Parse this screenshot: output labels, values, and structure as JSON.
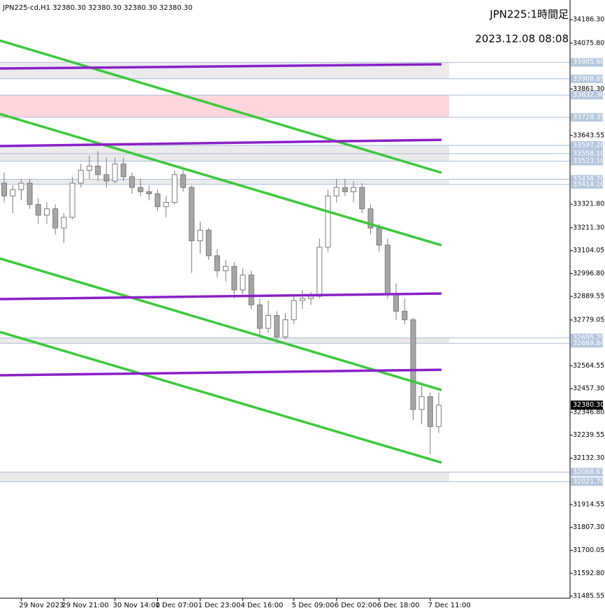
{
  "chart_data": {
    "type": "candlestick",
    "info_text": "JPN225-cd,H1  32380.30 32380.30 32380.30 32380.30",
    "title": "JPN225:1時間足",
    "subtitle": "2023.12.08 08:08",
    "ylim": [
      31475.8,
      34278.0
    ],
    "yticks": [
      {
        "value": 34186.3,
        "label": "34186.30"
      },
      {
        "value": 34075.8,
        "label": "34075.80"
      },
      {
        "value": 33861.3,
        "label": "33861.30"
      },
      {
        "value": 33643.55,
        "label": "33643.55"
      },
      {
        "value": 33321.8,
        "label": "33321.80"
      },
      {
        "value": 33211.3,
        "label": "33211.30"
      },
      {
        "value": 33104.05,
        "label": "33104.05"
      },
      {
        "value": 32996.8,
        "label": "32996.80"
      },
      {
        "value": 32889.55,
        "label": "32889.55"
      },
      {
        "value": 32779.05,
        "label": "32779.05"
      },
      {
        "value": 32564.55,
        "label": "32564.55"
      },
      {
        "value": 32457.3,
        "label": "32457.30"
      },
      {
        "value": 32346.8,
        "label": "32346.80"
      },
      {
        "value": 32239.55,
        "label": "32239.55"
      },
      {
        "value": 32132.3,
        "label": "32132.30"
      },
      {
        "value": 31914.55,
        "label": "31914.55"
      },
      {
        "value": 31807.3,
        "label": "31807.30"
      },
      {
        "value": 31700.05,
        "label": "31700.05"
      },
      {
        "value": 31592.8,
        "label": "31592.80"
      },
      {
        "value": 31485.55,
        "label": "31485.55"
      }
    ],
    "categories": [
      null,
      null,
      "29 Nov 2023",
      null,
      null,
      null,
      null,
      "29 Nov 21:00",
      null,
      null,
      null,
      null,
      null,
      "30 Nov 14:00",
      null,
      null,
      null,
      null,
      "1 Dec 07:00",
      null,
      null,
      null,
      null,
      "1 Dec 23:00",
      null,
      null,
      null,
      null,
      "4 Dec 16:00",
      null,
      null,
      null,
      null,
      null,
      "5 Dec 09:00",
      null,
      null,
      null,
      null,
      "6 Dec 02:00",
      null,
      null,
      null,
      null,
      "6 Dec 18:00",
      null,
      null,
      null,
      null,
      null,
      "7 Dec 11:00",
      null
    ],
    "open": [
      33420,
      33360,
      33390,
      33420,
      33320,
      33270,
      33300,
      33210,
      33260,
      33420,
      33480,
      33500,
      33460,
      33430,
      33510,
      33450,
      33400,
      33380,
      33370,
      33310,
      33330,
      33460,
      33400,
      33150,
      33200,
      33080,
      33010,
      33030,
      32920,
      32990,
      32850,
      32740,
      32800,
      32700,
      32780,
      32870,
      32880,
      32890,
      33120,
      33360,
      33400,
      33380,
      33400,
      33300,
      33210,
      33130,
      32900,
      32820,
      32780,
      32360,
      32420,
      32280
    ],
    "high": [
      33470,
      33410,
      33440,
      33440,
      33350,
      33330,
      33320,
      33280,
      33450,
      33510,
      33550,
      33570,
      33540,
      33540,
      33540,
      33470,
      33440,
      33410,
      33390,
      33360,
      33480,
      33480,
      33410,
      33240,
      33210,
      33110,
      33060,
      33050,
      33020,
      33010,
      32880,
      32870,
      32820,
      32810,
      32900,
      32920,
      32910,
      33160,
      33390,
      33440,
      33440,
      33430,
      33420,
      33320,
      33230,
      33160,
      32950,
      32880,
      32790,
      32470,
      32440,
      32440
    ],
    "low": [
      33330,
      33280,
      33340,
      33300,
      33230,
      33230,
      33180,
      33140,
      33250,
      33400,
      33440,
      33430,
      33400,
      33420,
      33430,
      33370,
      33360,
      33340,
      33290,
      33260,
      33320,
      33380,
      33000,
      33090,
      33060,
      32980,
      32960,
      32880,
      32900,
      32830,
      32700,
      32720,
      32670,
      32690,
      32760,
      32830,
      32850,
      32880,
      33100,
      33330,
      33360,
      33330,
      33280,
      33180,
      33100,
      32880,
      32780,
      32760,
      32310,
      32290,
      32150,
      32250
    ],
    "close": [
      33360,
      33390,
      33420,
      33320,
      33270,
      33300,
      33210,
      33260,
      33420,
      33480,
      33500,
      33460,
      33430,
      33510,
      33450,
      33400,
      33380,
      33370,
      33310,
      33330,
      33460,
      33400,
      33150,
      33200,
      33080,
      33010,
      33030,
      32920,
      32990,
      32850,
      32740,
      32800,
      32700,
      32780,
      32870,
      32880,
      32890,
      33120,
      33360,
      33400,
      33380,
      33400,
      33300,
      33210,
      33130,
      32900,
      32820,
      32780,
      32360,
      32420,
      32280,
      32380.3
    ],
    "levels": [
      {
        "value": 33985.9,
        "label": "33985.90"
      },
      {
        "value": 33908.85,
        "label": "33908.85"
      },
      {
        "value": 33832.3,
        "label": "33832.30"
      },
      {
        "value": 33728.35,
        "label": "33728.35"
      },
      {
        "value": 33597.2,
        "label": "33597.20"
      },
      {
        "value": 33558.1,
        "label": "33558.10"
      },
      {
        "value": 33523.1,
        "label": "33523.10"
      },
      {
        "value": 33438.2,
        "label": "33438.20"
      },
      {
        "value": 33414.1,
        "label": "33414.10"
      },
      {
        "value": 32695.29,
        "label": "32695.29"
      },
      {
        "value": 32669.84,
        "label": "32669.84"
      },
      {
        "value": 32066.67,
        "label": "32066.67"
      },
      {
        "value": 32021.7,
        "label": "32021.70"
      }
    ],
    "zones": [
      {
        "values": [
          33908.85,
          33985.9
        ],
        "color": "#ebebeb"
      },
      {
        "values": [
          33728.35,
          33832.3
        ],
        "color": "#ffd6dc"
      },
      {
        "values": [
          33523.1,
          33597.2
        ],
        "color": "#ebebeb"
      },
      {
        "values": [
          33414.1,
          33438.2
        ],
        "color": "#ebebeb"
      },
      {
        "values": [
          32669.84,
          32695.29
        ],
        "color": "#ebebeb"
      },
      {
        "values": [
          32021.7,
          32066.67
        ],
        "color": "#ebebeb"
      }
    ],
    "last_price": {
      "value": 32380.3,
      "label": "32380.30"
    },
    "trendlines": [
      {
        "color": "#3cc83c",
        "values": [
          34088,
          33469
        ]
      },
      {
        "color": "#3cc83c",
        "values": [
          33744,
          33129
        ]
      },
      {
        "color": "#3cc83c",
        "values": [
          33067,
          32451
        ]
      },
      {
        "color": "#3cc83c",
        "values": [
          32723,
          32111
        ]
      },
      {
        "color": "#8b1fc8",
        "values": [
          33957,
          33977
        ]
      },
      {
        "color": "#8b1fc8",
        "values": [
          33594,
          33623
        ]
      },
      {
        "color": "#8b1fc8",
        "values": [
          32877,
          32903
        ]
      },
      {
        "color": "#8b1fc8",
        "values": [
          32520,
          32546
        ]
      }
    ]
  }
}
